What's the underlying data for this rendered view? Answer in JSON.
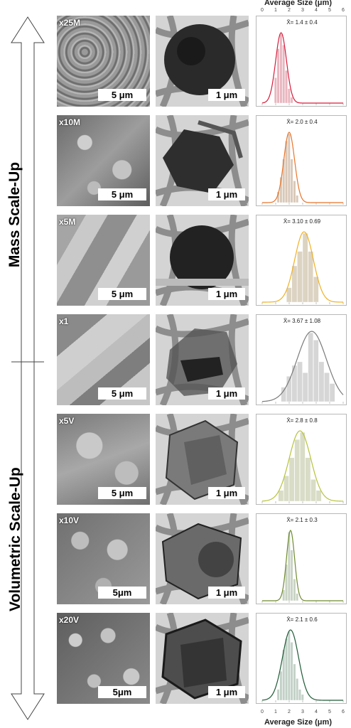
{
  "labels": {
    "mass_scaleup": "Mass Scale-Up",
    "volumetric_scaleup": "Volumetric Scale-Up",
    "axis_title_top": "Average Size (μm)",
    "axis_title_bottom": "Average Size (μm)",
    "x_ticks": [
      "0",
      "1",
      "2",
      "3",
      "4",
      "5",
      "6"
    ]
  },
  "rows": [
    {
      "mag": "x25M",
      "sem_scale": "5 μm",
      "tem_scale": "1 μm",
      "stat": "X̄= 1.4 ± 0.4",
      "mean": 1.4,
      "sd": 0.4,
      "color": "#d81b3b",
      "bar_color": "#e9b6bf",
      "bins": [
        {
          "x": 1.0,
          "h": 0.35
        },
        {
          "x": 1.2,
          "h": 0.75
        },
        {
          "x": 1.4,
          "h": 0.95
        },
        {
          "x": 1.6,
          "h": 0.8
        },
        {
          "x": 1.8,
          "h": 0.45
        },
        {
          "x": 2.0,
          "h": 0.2
        },
        {
          "x": 2.2,
          "h": 0.08
        }
      ]
    },
    {
      "mag": "x10M",
      "sem_scale": "5 μm",
      "tem_scale": "1 μm",
      "stat": "X̄= 2.0 ± 0.4",
      "mean": 2.0,
      "sd": 0.4,
      "color": "#e8742a",
      "bar_color": "#d9c8b8",
      "bins": [
        {
          "x": 1.2,
          "h": 0.15
        },
        {
          "x": 1.4,
          "h": 0.35
        },
        {
          "x": 1.6,
          "h": 0.6
        },
        {
          "x": 1.8,
          "h": 0.85
        },
        {
          "x": 2.0,
          "h": 0.95
        },
        {
          "x": 2.2,
          "h": 0.6
        },
        {
          "x": 2.4,
          "h": 0.3
        },
        {
          "x": 2.6,
          "h": 0.1
        }
      ]
    },
    {
      "mag": "x5M",
      "sem_scale": "5 μm",
      "tem_scale": "1 μm",
      "stat": "X̄= 3.10 ± 0.69",
      "mean": 3.1,
      "sd": 0.69,
      "color": "#f0b020",
      "bar_color": "#dcd3c2",
      "bins": [
        {
          "x": 2.0,
          "h": 0.2
        },
        {
          "x": 2.4,
          "h": 0.5
        },
        {
          "x": 2.8,
          "h": 0.7
        },
        {
          "x": 3.2,
          "h": 0.95
        },
        {
          "x": 3.6,
          "h": 0.7
        },
        {
          "x": 4.0,
          "h": 0.35
        }
      ]
    },
    {
      "mag": "x1",
      "sem_scale": "5 μm",
      "tem_scale": "1 μm",
      "stat": "X̄= 3.67 ± 1.08",
      "mean": 3.67,
      "sd": 1.08,
      "color": "#7a7a7a",
      "bar_color": "#d6d6d6",
      "bins": [
        {
          "x": 1.6,
          "h": 0.2
        },
        {
          "x": 2.0,
          "h": 0.35
        },
        {
          "x": 2.4,
          "h": 0.5
        },
        {
          "x": 2.8,
          "h": 0.55
        },
        {
          "x": 3.2,
          "h": 0.4
        },
        {
          "x": 3.6,
          "h": 0.95
        },
        {
          "x": 4.0,
          "h": 0.85
        },
        {
          "x": 4.4,
          "h": 0.55
        },
        {
          "x": 4.8,
          "h": 0.4
        },
        {
          "x": 5.2,
          "h": 0.25
        }
      ]
    },
    {
      "mag": "x5V",
      "sem_scale": "5 μm",
      "tem_scale": "1 μm",
      "stat": "X̄= 2.8 ± 0.8",
      "mean": 2.8,
      "sd": 0.8,
      "color": "#b6c33a",
      "bar_color": "#d9dcc6",
      "bins": [
        {
          "x": 1.4,
          "h": 0.15
        },
        {
          "x": 1.8,
          "h": 0.35
        },
        {
          "x": 2.2,
          "h": 0.6
        },
        {
          "x": 2.6,
          "h": 0.85
        },
        {
          "x": 3.0,
          "h": 0.95
        },
        {
          "x": 3.4,
          "h": 0.6
        },
        {
          "x": 3.8,
          "h": 0.3
        },
        {
          "x": 4.2,
          "h": 0.15
        }
      ]
    },
    {
      "mag": "x10V",
      "sem_scale": "5μm",
      "tem_scale": "1 μm",
      "stat": "X̄= 2.1 ± 0.3",
      "mean": 2.1,
      "sd": 0.3,
      "color": "#6f8a2e",
      "bar_color": "#c9d3c4",
      "bins": [
        {
          "x": 1.6,
          "h": 0.15
        },
        {
          "x": 1.8,
          "h": 0.5
        },
        {
          "x": 2.0,
          "h": 0.95
        },
        {
          "x": 2.2,
          "h": 0.7
        },
        {
          "x": 2.4,
          "h": 0.3
        },
        {
          "x": 2.6,
          "h": 0.1
        }
      ]
    },
    {
      "mag": "x20V",
      "sem_scale": "5μm",
      "tem_scale": "1 μm",
      "stat": "X̄= 2.1 ± 0.6",
      "mean": 2.1,
      "sd": 0.6,
      "color": "#1f5a35",
      "bar_color": "#c2d1c7",
      "bins": [
        {
          "x": 1.2,
          "h": 0.15
        },
        {
          "x": 1.4,
          "h": 0.4
        },
        {
          "x": 1.6,
          "h": 0.7
        },
        {
          "x": 1.8,
          "h": 0.85
        },
        {
          "x": 2.0,
          "h": 0.95
        },
        {
          "x": 2.2,
          "h": 0.8
        },
        {
          "x": 2.4,
          "h": 0.5
        },
        {
          "x": 2.6,
          "h": 0.3
        },
        {
          "x": 2.8,
          "h": 0.15
        },
        {
          "x": 3.0,
          "h": 0.08
        }
      ]
    }
  ]
}
